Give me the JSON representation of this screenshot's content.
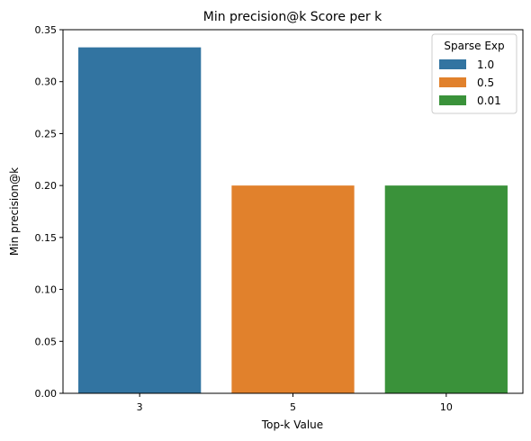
{
  "chart_data": {
    "type": "bar",
    "title": "Min precision@k Score per k",
    "xlabel": "Top-k Value",
    "ylabel": "Min precision@k",
    "categories": [
      "3",
      "5",
      "10"
    ],
    "series": [
      {
        "name": "1.0",
        "category": "3",
        "value": 0.333,
        "color": "#3274a1"
      },
      {
        "name": "0.5",
        "category": "5",
        "value": 0.2,
        "color": "#e1812c"
      },
      {
        "name": "0.01",
        "category": "10",
        "value": 0.2,
        "color": "#3a923a"
      }
    ],
    "ylim": [
      0,
      0.35
    ],
    "yticks": [
      "0.00",
      "0.05",
      "0.10",
      "0.15",
      "0.20",
      "0.25",
      "0.30",
      "0.35"
    ],
    "grid": false,
    "legend": {
      "title": "Sparse Exp",
      "placement": "top-right"
    }
  }
}
